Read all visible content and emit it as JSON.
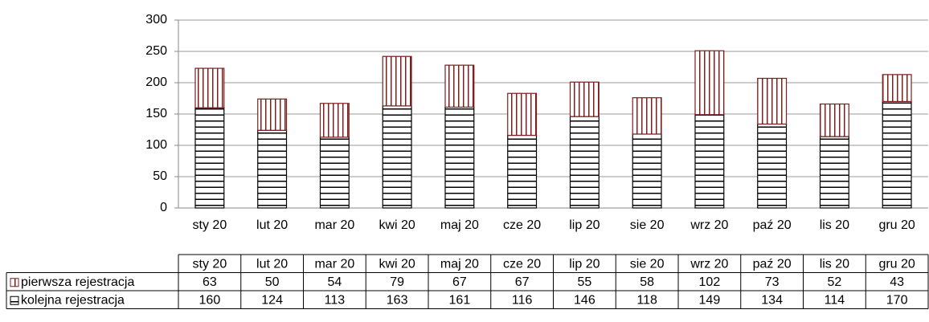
{
  "chart_data": {
    "type": "bar",
    "stacked": true,
    "categories": [
      "sty 20",
      "lut 20",
      "mar 20",
      "kwi 20",
      "maj 20",
      "cze 20",
      "lip 20",
      "sie 20",
      "wrz 20",
      "paź 20",
      "lis 20",
      "gru 20"
    ],
    "series": [
      {
        "name": "kolejna rejestracja",
        "color": "#000000",
        "values": [
          160,
          124,
          113,
          163,
          161,
          116,
          146,
          118,
          149,
          134,
          114,
          170
        ]
      },
      {
        "name": "pierwsza rejestracja",
        "color": "#7b1f1f",
        "values": [
          63,
          50,
          54,
          79,
          67,
          67,
          55,
          58,
          102,
          73,
          52,
          43
        ]
      }
    ],
    "ylim": [
      0,
      300
    ],
    "yticks": [
      0,
      50,
      100,
      150,
      200,
      250,
      300
    ],
    "grid": true,
    "data_table": true
  }
}
